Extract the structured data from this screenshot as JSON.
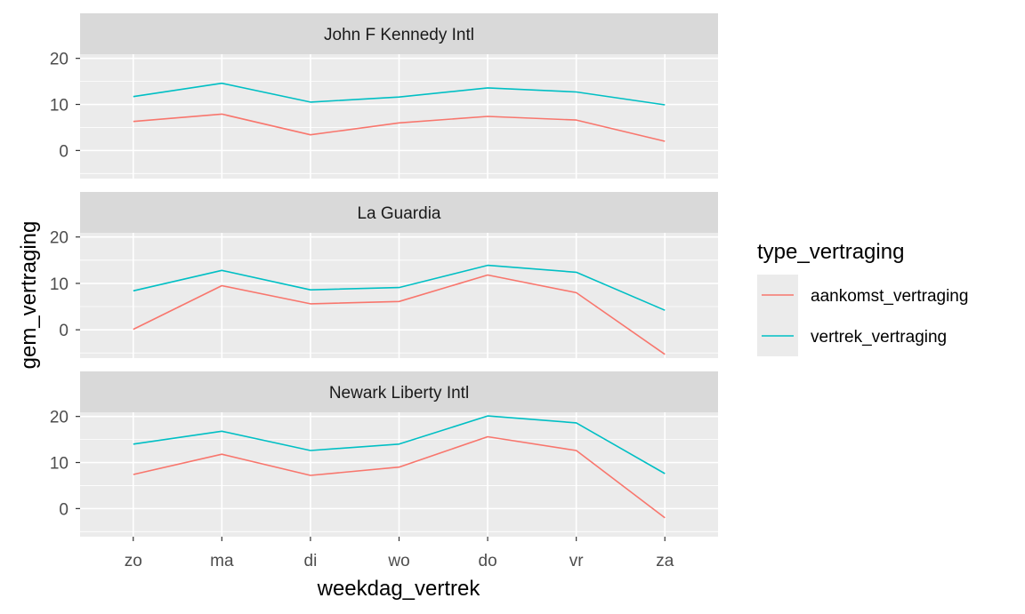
{
  "chart_data": {
    "type": "line",
    "facet_layout": "vertical",
    "xlabel": "weekdag_vertrek",
    "ylabel": "gem_vertraging",
    "categories": [
      "zo",
      "ma",
      "di",
      "wo",
      "do",
      "vr",
      "za"
    ],
    "y_ticks": [
      0,
      10,
      20
    ],
    "ylim": [
      -6.1,
      20.9
    ],
    "grid": true,
    "legend": {
      "title": "type_vertraging",
      "position": "right",
      "entries": [
        "aankomst_vertraging",
        "vertrek_vertraging"
      ]
    },
    "colors": {
      "aankomst_vertraging": "#F8766D",
      "vertrek_vertraging": "#00BFC4",
      "panel_bg": "#EBEBEB",
      "strip_bg": "#D9D9D9",
      "grid": "#FFFFFF"
    },
    "panels": [
      {
        "title": "John F Kennedy Intl",
        "series": [
          {
            "name": "aankomst_vertraging",
            "values": [
              6.3,
              7.9,
              3.4,
              6.0,
              7.4,
              6.6,
              2.0
            ]
          },
          {
            "name": "vertrek_vertraging",
            "values": [
              11.7,
              14.6,
              10.5,
              11.6,
              13.6,
              12.7,
              9.9
            ]
          }
        ]
      },
      {
        "title": "La Guardia",
        "series": [
          {
            "name": "aankomst_vertraging",
            "values": [
              0.1,
              9.5,
              5.6,
              6.1,
              11.8,
              8.0,
              -5.3
            ]
          },
          {
            "name": "vertrek_vertraging",
            "values": [
              8.4,
              12.8,
              8.6,
              9.1,
              13.9,
              12.4,
              4.2
            ]
          }
        ]
      },
      {
        "title": "Newark Liberty Intl",
        "series": [
          {
            "name": "aankomst_vertraging",
            "values": [
              7.4,
              11.8,
              7.2,
              9.0,
              15.6,
              12.6,
              -2.0
            ]
          },
          {
            "name": "vertrek_vertraging",
            "values": [
              14.0,
              16.8,
              12.6,
              14.0,
              20.1,
              18.6,
              7.6
            ]
          }
        ]
      }
    ]
  }
}
